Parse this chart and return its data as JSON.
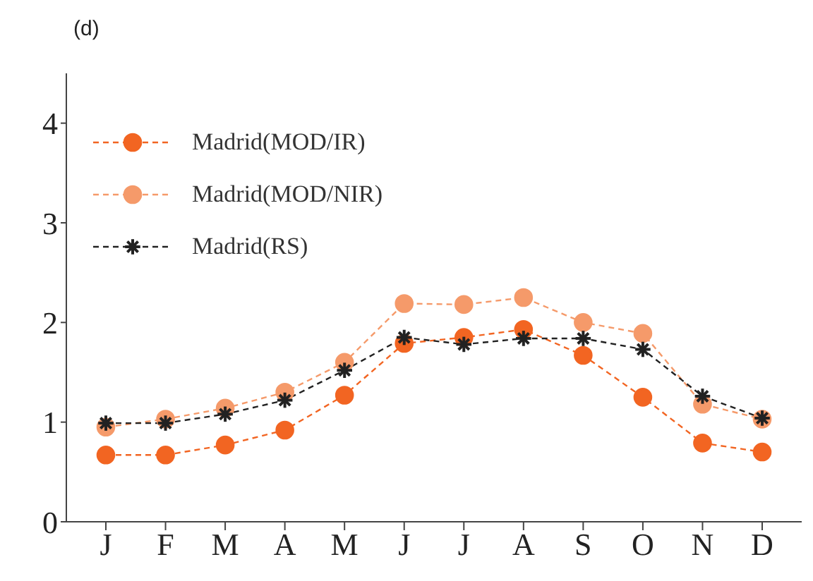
{
  "chart_data": {
    "type": "line",
    "title": "(d)",
    "categories": [
      "J",
      "F",
      "M",
      "A",
      "M",
      "J",
      "J",
      "A",
      "S",
      "O",
      "N",
      "D"
    ],
    "series": [
      {
        "name": "Madrid(MOD/IR)",
        "color": "#f26522",
        "marker": "circle",
        "values": [
          0.67,
          0.67,
          0.77,
          0.92,
          1.27,
          1.79,
          1.85,
          1.93,
          1.67,
          1.25,
          0.79,
          0.7
        ]
      },
      {
        "name": "Madrid(MOD/NIR)",
        "color": "#f59a6a",
        "marker": "circle",
        "values": [
          0.95,
          1.03,
          1.14,
          1.3,
          1.6,
          2.19,
          2.18,
          2.25,
          2.0,
          1.89,
          1.18,
          1.03
        ]
      },
      {
        "name": "Madrid(RS)",
        "color": "#222222",
        "marker": "cross",
        "values": [
          0.99,
          0.99,
          1.08,
          1.22,
          1.52,
          1.85,
          1.78,
          1.84,
          1.84,
          1.73,
          1.26,
          1.04
        ]
      }
    ],
    "ylim": [
      0,
      4.5
    ],
    "yticks": [
      0,
      1,
      2,
      3,
      4
    ],
    "grid": false,
    "legend": "top left",
    "line_style": "dashed"
  }
}
